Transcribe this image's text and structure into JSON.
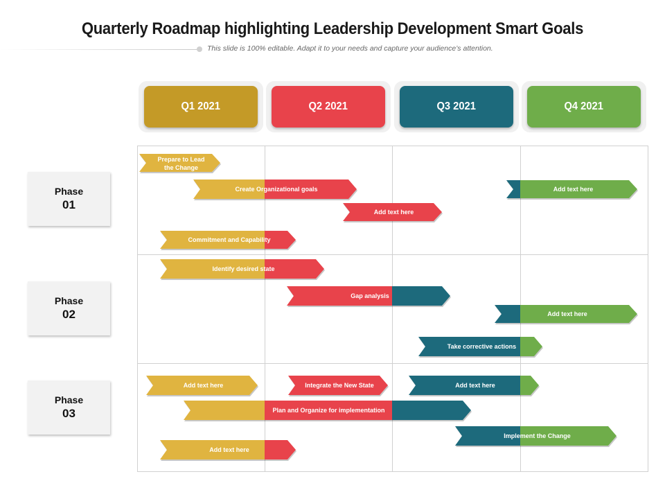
{
  "title": "Quarterly Roadmap highlighting Leadership Development Smart Goals",
  "subtitle": "This slide is 100% editable. Adapt it to your needs and capture your audience’s attention.",
  "colors": {
    "q1": "#c49a27",
    "q2": "#e8434b",
    "q3": "#1d6a7c",
    "q4": "#6fad4a",
    "yellow": "#e0b440"
  },
  "quarters": [
    {
      "label": "Q1 2021",
      "color": "#c49a27"
    },
    {
      "label": "Q2 2021",
      "color": "#e8434b"
    },
    {
      "label": "Q3 2021",
      "color": "#1d6a7c"
    },
    {
      "label": "Q4 2021",
      "color": "#6fad4a"
    }
  ],
  "phases": [
    {
      "label": "Phase",
      "number": "01"
    },
    {
      "label": "Phase",
      "number": "02"
    },
    {
      "label": "Phase",
      "number": "03"
    }
  ],
  "tasks": [
    {
      "label": "Prepare to Lead the Change",
      "phase": "01"
    },
    {
      "label": "Create Organizational goals",
      "phase": "01"
    },
    {
      "label": "Add text here",
      "phase": "01"
    },
    {
      "label": "Add text here",
      "phase": "01"
    },
    {
      "label": "Commitment and Capability",
      "phase": "01"
    },
    {
      "label": "Identify desired state",
      "phase": "02"
    },
    {
      "label": "Gap analysis",
      "phase": "02"
    },
    {
      "label": "Add text here",
      "phase": "02"
    },
    {
      "label": "Take corrective actions",
      "phase": "02"
    },
    {
      "label": "Add text here",
      "phase": "03"
    },
    {
      "label": "Integrate the New State",
      "phase": "03"
    },
    {
      "label": "Add text here",
      "phase": "03"
    },
    {
      "label": "Plan and Organize for implementation",
      "phase": "03"
    },
    {
      "label": "Implement the Change",
      "phase": "03"
    },
    {
      "label": "Add text here",
      "phase": "03"
    }
  ]
}
